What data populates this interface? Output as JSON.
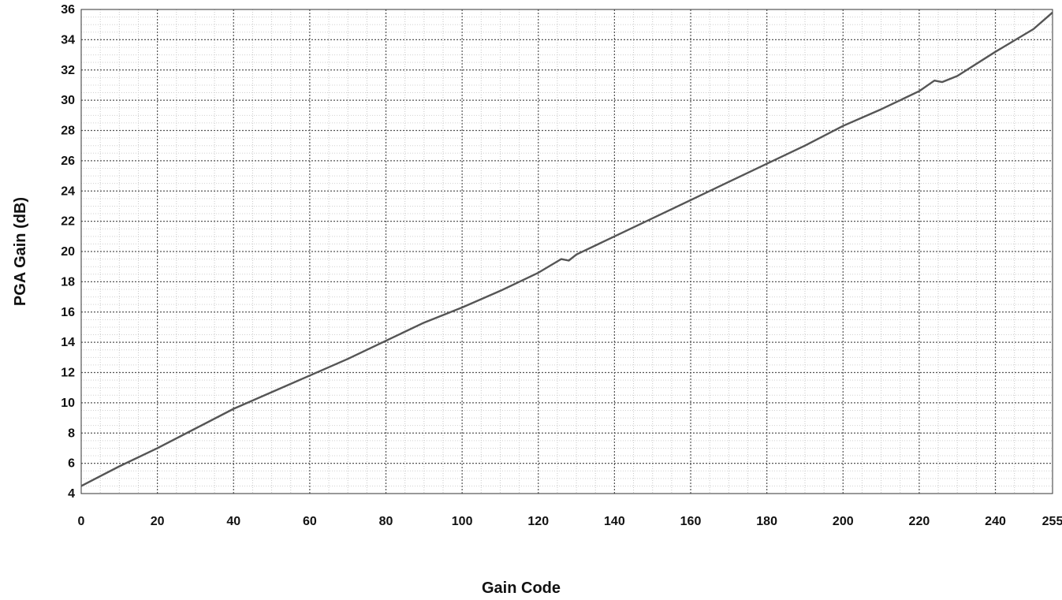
{
  "chart_data": {
    "type": "line",
    "xlabel": "Gain Code",
    "ylabel": "PGA Gain (dB)",
    "xlim": [
      0,
      255
    ],
    "ylim": [
      4,
      36
    ],
    "grid": true,
    "x_ticks": [
      "0",
      "20",
      "40",
      "60",
      "80",
      "100",
      "120",
      "140",
      "160",
      "180",
      "200",
      "220",
      "240",
      "255"
    ],
    "y_ticks": [
      "4",
      "6",
      "8",
      "10",
      "12",
      "14",
      "16",
      "18",
      "20",
      "22",
      "24",
      "26",
      "28",
      "30",
      "32",
      "34",
      "36"
    ],
    "series": [
      {
        "color": "#555555",
        "x": [
          0,
          10,
          20,
          30,
          40,
          50,
          60,
          70,
          80,
          90,
          100,
          110,
          120,
          126,
          128,
          130,
          140,
          150,
          160,
          170,
          180,
          190,
          200,
          210,
          220,
          224,
          226,
          230,
          240,
          250,
          255
        ],
        "y": [
          4.5,
          5.8,
          7.0,
          8.3,
          9.6,
          10.7,
          11.8,
          12.9,
          14.1,
          15.3,
          16.3,
          17.4,
          18.6,
          19.5,
          19.4,
          19.8,
          21.0,
          22.2,
          23.4,
          24.6,
          25.8,
          27.0,
          28.3,
          29.4,
          30.6,
          31.3,
          31.2,
          31.6,
          33.2,
          34.7,
          35.8
        ]
      }
    ]
  }
}
